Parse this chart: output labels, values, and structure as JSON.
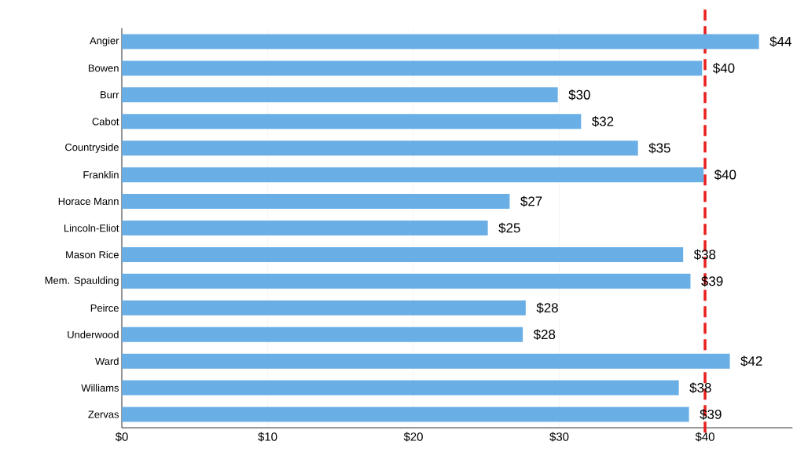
{
  "chart_data": {
    "type": "bar",
    "orientation": "horizontal",
    "categories": [
      "Angier",
      "Bowen",
      "Burr",
      "Cabot",
      "Countryside",
      "Franklin",
      "Horace Mann",
      "Lincoln-Eliot",
      "Mason Rice",
      "Mem. Spaulding",
      "Peirce",
      "Underwood",
      "Ward",
      "Williams",
      "Zervas"
    ],
    "values": [
      43.7,
      39.8,
      29.9,
      31.5,
      35.4,
      39.9,
      26.6,
      25.1,
      38.5,
      39.0,
      27.7,
      27.5,
      41.7,
      38.2,
      38.9
    ],
    "value_labels": [
      "$44",
      "$40",
      "$30",
      "$32",
      "$35",
      "$40",
      "$27",
      "$25",
      "$38",
      "$39",
      "$28",
      "$28",
      "$42",
      "$38",
      "$39"
    ],
    "color": "#6aaee6",
    "xlim": [
      0,
      46
    ],
    "xticks": [
      {
        "value": 0,
        "label": "$0"
      },
      {
        "value": 10,
        "label": "$10"
      },
      {
        "value": 20,
        "label": "$20"
      },
      {
        "value": 30,
        "label": "$30"
      },
      {
        "value": 40,
        "label": "$40"
      }
    ],
    "grid": "x",
    "ref_lines": [
      {
        "axis": "x",
        "value": 40,
        "color": "#e8201d",
        "line_style": "dashed"
      }
    ]
  }
}
